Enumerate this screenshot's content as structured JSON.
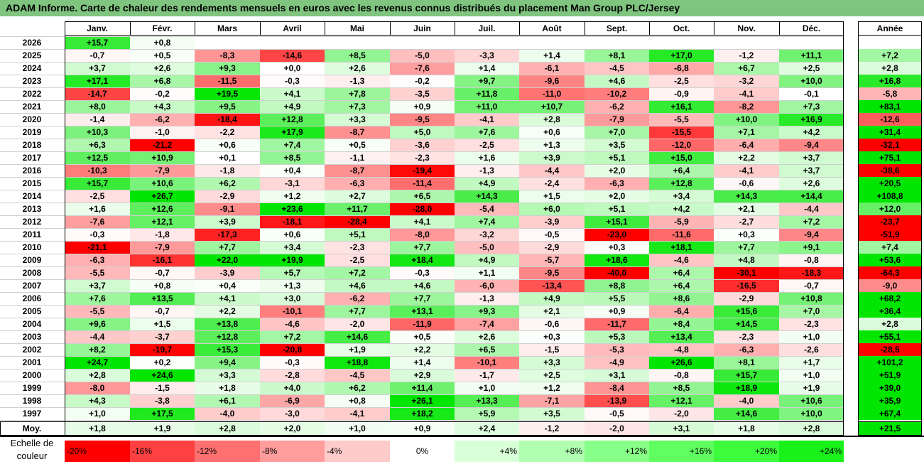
{
  "title": "ADAM Informe. Carte de chaleur des rendements mensuels en euros avec les revenus connus distribués du placement Man Group PLC/Jersey",
  "chart_data": {
    "type": "heatmap",
    "columns": [
      "Janv.",
      "Févr.",
      "Mars",
      "Avril",
      "Mai",
      "Juin",
      "Juil.",
      "Août",
      "Sept.",
      "Oct.",
      "Nov.",
      "Déc."
    ],
    "year_header": "Année",
    "rows": [
      {
        "year": "2026",
        "values": [
          "+15,7",
          "+0,8",
          "",
          "",
          "",
          "",
          "",
          "",
          "",
          "",
          "",
          ""
        ],
        "annual": ""
      },
      {
        "year": "2025",
        "values": [
          "-0,7",
          "+0,5",
          "-8,3",
          "-14,6",
          "+8,5",
          "-5,0",
          "-3,3",
          "+1,4",
          "+8,1",
          "+17,0",
          "-1,2",
          "+11,1"
        ],
        "annual": "+7,2"
      },
      {
        "year": "2024",
        "values": [
          "+3,7",
          "+2,6",
          "+9,3",
          "+0,0",
          "+2,6",
          "-7,6",
          "+1,4",
          "-6,1",
          "-4,5",
          "-6,8",
          "+6,7",
          "+2,5"
        ],
        "annual": "+2,8"
      },
      {
        "year": "2023",
        "values": [
          "+17,1",
          "+6,8",
          "-11,5",
          "-0,3",
          "-1,3",
          "-0,2",
          "+9,7",
          "-9,6",
          "+4,6",
          "-2,5",
          "-3,2",
          "+10,0"
        ],
        "annual": "+16,8"
      },
      {
        "year": "2022",
        "values": [
          "-14,7",
          "-0,2",
          "+19,5",
          "+4,1",
          "+7,8",
          "-3,5",
          "+11,8",
          "-11,0",
          "-10,2",
          "-0,9",
          "-4,1",
          "-0,1"
        ],
        "annual": "-5,8"
      },
      {
        "year": "2021",
        "values": [
          "+8,0",
          "+4,3",
          "+9,5",
          "+4,9",
          "+7,3",
          "+0,9",
          "+11,0",
          "+10,7",
          "-6,2",
          "+16,1",
          "-8,2",
          "+7,3"
        ],
        "annual": "+83,1"
      },
      {
        "year": "2020",
        "values": [
          "-1,4",
          "-6,2",
          "-18,4",
          "+12,8",
          "+3,3",
          "-9,5",
          "-4,1",
          "+2,8",
          "-7,9",
          "-5,5",
          "+10,0",
          "+16,9"
        ],
        "annual": "-12,6"
      },
      {
        "year": "2019",
        "values": [
          "+10,3",
          "-1,0",
          "-2,2",
          "+17,9",
          "-8,7",
          "+5,0",
          "+7,6",
          "+0,6",
          "+7,0",
          "-15,5",
          "+7,1",
          "+4,2"
        ],
        "annual": "+31,4"
      },
      {
        "year": "2018",
        "values": [
          "+6,3",
          "-21,2",
          "+0,6",
          "+7,4",
          "+0,5",
          "-3,6",
          "-2,5",
          "+1,3",
          "+3,5",
          "-12,0",
          "-6,4",
          "-9,4"
        ],
        "annual": "-32,1"
      },
      {
        "year": "2017",
        "values": [
          "+12,5",
          "+10,9",
          "+0,1",
          "+8,5",
          "-1,1",
          "-2,3",
          "+1,6",
          "+3,9",
          "+5,1",
          "+15,0",
          "+2,2",
          "+3,7"
        ],
        "annual": "+75,1"
      },
      {
        "year": "2016",
        "values": [
          "-10,3",
          "-7,9",
          "-1,8",
          "+0,4",
          "-8,7",
          "-19,4",
          "-1,3",
          "-4,4",
          "+2,0",
          "+6,4",
          "-4,1",
          "+3,7"
        ],
        "annual": "-38,6"
      },
      {
        "year": "2015",
        "values": [
          "+15,7",
          "+10,6",
          "+6,2",
          "-3,1",
          "-6,3",
          "-11,4",
          "+4,9",
          "-2,4",
          "-6,3",
          "+12,8",
          "-0,6",
          "+2,6"
        ],
        "annual": "+20,5"
      },
      {
        "year": "2014",
        "values": [
          "-2,5",
          "+26,7",
          "-2,9",
          "+1,2",
          "+2,7",
          "+6,5",
          "+14,3",
          "+1,5",
          "+2,0",
          "+3,4",
          "+14,3",
          "+14,4"
        ],
        "annual": "+108,8"
      },
      {
        "year": "2013",
        "values": [
          "+1,6",
          "+12,6",
          "-9,1",
          "+23,6",
          "+11,7",
          "-28,0",
          "-5,4",
          "+6,0",
          "+5,1",
          "+4,2",
          "+2,1",
          "-4,4"
        ],
        "annual": "+12,0"
      },
      {
        "year": "2012",
        "values": [
          "-7,6",
          "+12,1",
          "+3,9",
          "-18,1",
          "-28,4",
          "+4,1",
          "+7,4",
          "-3,9",
          "+15,1",
          "-5,9",
          "-2,7",
          "+7,2"
        ],
        "annual": "-23,7"
      },
      {
        "year": "2011",
        "values": [
          "-0,3",
          "-1,8",
          "-17,3",
          "+0,6",
          "+5,1",
          "-8,0",
          "-3,2",
          "-0,5",
          "-23,0",
          "-11,6",
          "+0,3",
          "-9,4"
        ],
        "annual": "-51,9"
      },
      {
        "year": "2010",
        "values": [
          "-21,1",
          "-7,9",
          "+7,7",
          "+3,4",
          "-2,3",
          "+7,7",
          "-5,0",
          "-2,9",
          "+0,3",
          "+18,1",
          "+7,7",
          "+9,1"
        ],
        "annual": "+7,4"
      },
      {
        "year": "2009",
        "values": [
          "-6,3",
          "-16,1",
          "+22,0",
          "+19,9",
          "-2,5",
          "+18,4",
          "+4,9",
          "-5,7",
          "+18,6",
          "-4,6",
          "+4,8",
          "-0,8"
        ],
        "annual": "+53,6"
      },
      {
        "year": "2008",
        "values": [
          "-5,5",
          "-0,7",
          "-3,9",
          "+5,7",
          "+7,2",
          "-0,3",
          "+1,1",
          "-9,5",
          "-40,0",
          "+6,4",
          "-30,1",
          "-18,3"
        ],
        "annual": "-64,3"
      },
      {
        "year": "2007",
        "values": [
          "+3,7",
          "+0,8",
          "+0,4",
          "+1,3",
          "+4,6",
          "+4,6",
          "-6,0",
          "-13,4",
          "+8,8",
          "+6,4",
          "-16,5",
          "-0,7"
        ],
        "annual": "-9,0"
      },
      {
        "year": "2006",
        "values": [
          "+7,6",
          "+13,5",
          "+4,1",
          "+3,0",
          "-6,2",
          "+7,7",
          "-1,3",
          "+4,9",
          "+5,5",
          "+8,6",
          "-2,9",
          "+10,8"
        ],
        "annual": "+68,2"
      },
      {
        "year": "2005",
        "values": [
          "-5,5",
          "-0,7",
          "+2,2",
          "-10,1",
          "+7,7",
          "+13,1",
          "+9,3",
          "+2,1",
          "+0,9",
          "-6,4",
          "+15,6",
          "+7,0"
        ],
        "annual": "+36,4"
      },
      {
        "year": "2004",
        "values": [
          "+9,6",
          "+1,5",
          "+13,8",
          "-4,6",
          "-2,0",
          "-11,9",
          "-7,4",
          "-0,6",
          "-11,7",
          "+8,4",
          "+14,5",
          "-2,3"
        ],
        "annual": "+2,8"
      },
      {
        "year": "2003",
        "values": [
          "-4,4",
          "-3,7",
          "+12,8",
          "+7,2",
          "+14,6",
          "+0,5",
          "+2,6",
          "+0,3",
          "+5,3",
          "+13,4",
          "-2,3",
          "+1,0"
        ],
        "annual": "+55,1"
      },
      {
        "year": "2002",
        "values": [
          "+8,2",
          "-19,7",
          "+15,3",
          "-20,8",
          "+1,9",
          "+2,2",
          "+6,5",
          "-1,5",
          "-5,3",
          "-4,8",
          "-6,3",
          "-2,6"
        ],
        "annual": "-28,5"
      },
      {
        "year": "2001",
        "values": [
          "+24,7",
          "+0,2",
          "+9,4",
          "-0,3",
          "+18,8",
          "+1,4",
          "-10,1",
          "+3,3",
          "-4,9",
          "+26,6",
          "+8,1",
          "+1,7"
        ],
        "annual": "+101,2"
      },
      {
        "year": "2000",
        "values": [
          "+2,8",
          "+24,6",
          "+3,3",
          "-2,8",
          "-4,5",
          "+2,9",
          "-1,7",
          "+2,5",
          "+3,1",
          "-0,8",
          "+15,7",
          "+1,0"
        ],
        "annual": "+51,9"
      },
      {
        "year": "1999",
        "values": [
          "-8,0",
          "-1,5",
          "+1,8",
          "+4,0",
          "+6,2",
          "+11,4",
          "+1,0",
          "+1,2",
          "-8,4",
          "+8,5",
          "+18,9",
          "+1,9"
        ],
        "annual": "+39,0"
      },
      {
        "year": "1998",
        "values": [
          "+4,3",
          "-3,8",
          "+6,1",
          "-6,9",
          "+0,8",
          "+26,1",
          "+13,3",
          "-7,1",
          "-13,9",
          "+12,1",
          "-4,0",
          "+10,6"
        ],
        "annual": "+35,9"
      },
      {
        "year": "1997",
        "values": [
          "+1,0",
          "+17,5",
          "-4,0",
          "-3,0",
          "-4,1",
          "+18,2",
          "+5,9",
          "+3,5",
          "-0,5",
          "-2,0",
          "+14,6",
          "+10,0"
        ],
        "annual": "+67,4"
      }
    ],
    "average": {
      "label": "Moy.",
      "values": [
        "+1,8",
        "+1,9",
        "+2,8",
        "+2,0",
        "+1,0",
        "+0,9",
        "+2,4",
        "-1,2",
        "-2,0",
        "+3,1",
        "+1,8",
        "+2,8"
      ],
      "annual": "+21,5"
    },
    "legend": {
      "label_line1": "Echelle de",
      "label_line2": "couleur",
      "items": [
        {
          "text": "-20%",
          "color": "#ff0000"
        },
        {
          "text": "-16%",
          "color": "#ff4040"
        },
        {
          "text": "-12%",
          "color": "#ff7070"
        },
        {
          "text": "-8%",
          "color": "#ff9c9c"
        },
        {
          "text": "-4%",
          "color": "#ffcaca"
        },
        {
          "text": "0%",
          "color": "#ffffff"
        },
        {
          "text": "+4%",
          "color": "#d8ffd8"
        },
        {
          "text": "+8%",
          "color": "#b0ffb0"
        },
        {
          "text": "+12%",
          "color": "#88ff88"
        },
        {
          "text": "+16%",
          "color": "#60ff60"
        },
        {
          "text": "+20%",
          "color": "#3cfc3c"
        },
        {
          "text": "+24%",
          "color": "#1af01a"
        }
      ]
    }
  }
}
